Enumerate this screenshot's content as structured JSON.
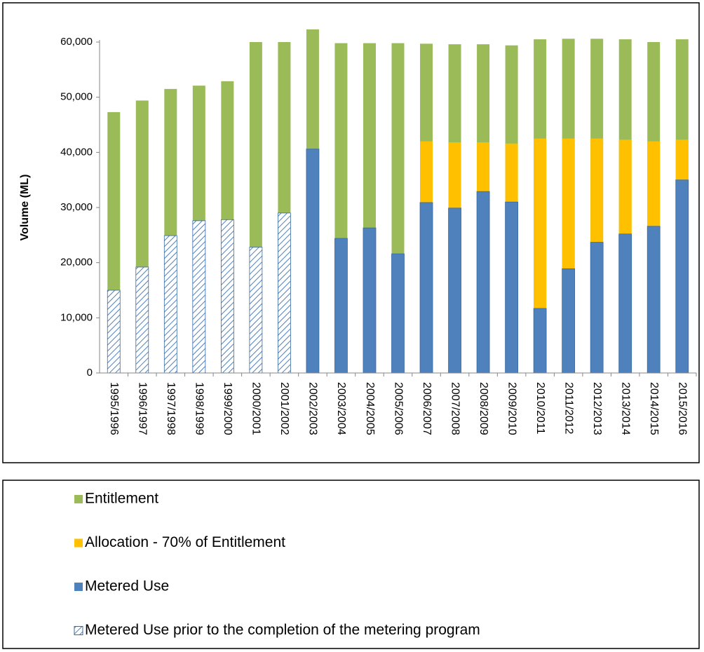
{
  "chart_data": {
    "type": "overlapped-bar",
    "y_label": "Volume (ML)",
    "categories": [
      "1995/1996",
      "1996/1997",
      "1997/1998",
      "1998/1999",
      "1999/2000",
      "2000/2001",
      "2001/2002",
      "2002/2003",
      "2003/2004",
      "2004/2005",
      "2005/2006",
      "2006/2007",
      "2007/2008",
      "2008/2009",
      "2009/2010",
      "2010/2011",
      "2011/2012",
      "2012/2013",
      "2013/2014",
      "2014/2015",
      "2015/2016"
    ],
    "series": [
      {
        "name": "Entitlement",
        "color": "#9bbb59",
        "values": [
          47300,
          49400,
          51500,
          52100,
          52900,
          60000,
          60000,
          62300,
          59800,
          59800,
          59800,
          59700,
          59600,
          59600,
          59400,
          60500,
          60600,
          60600,
          60500,
          60000,
          60500
        ]
      },
      {
        "name": "Allocation - 70% of Entitlement",
        "color": "#ffc000",
        "values": [
          null,
          null,
          null,
          null,
          null,
          null,
          null,
          null,
          null,
          null,
          null,
          42000,
          41800,
          41800,
          41600,
          42500,
          42500,
          42500,
          42300,
          42000,
          42300
        ]
      },
      {
        "name": "Metered Use",
        "color": "#4f81bd",
        "values": [
          null,
          null,
          null,
          null,
          null,
          null,
          null,
          40600,
          24400,
          26300,
          21600,
          30900,
          29900,
          32900,
          31000,
          11700,
          18900,
          23700,
          25200,
          26600,
          35000
        ]
      },
      {
        "name": "Metered Use prior to the completion of the metering program",
        "color": "#4f81bd",
        "hatch": true,
        "values": [
          15000,
          19200,
          24900,
          27600,
          27800,
          22800,
          29000,
          null,
          null,
          null,
          null,
          null,
          null,
          null,
          null,
          null,
          null,
          null,
          null,
          null,
          null
        ]
      }
    ],
    "ylim": [
      0,
      60000
    ],
    "yticks": [
      0,
      {
        "value": 10000,
        "label": "10,000"
      },
      {
        "value": 20000,
        "label": "20,000"
      },
      {
        "value": 30000,
        "label": "30,000"
      },
      {
        "value": 40000,
        "label": "40,000"
      },
      {
        "value": 50000,
        "label": "50,000"
      },
      {
        "value": 60000,
        "label": "60,000"
      }
    ],
    "grid": false
  }
}
